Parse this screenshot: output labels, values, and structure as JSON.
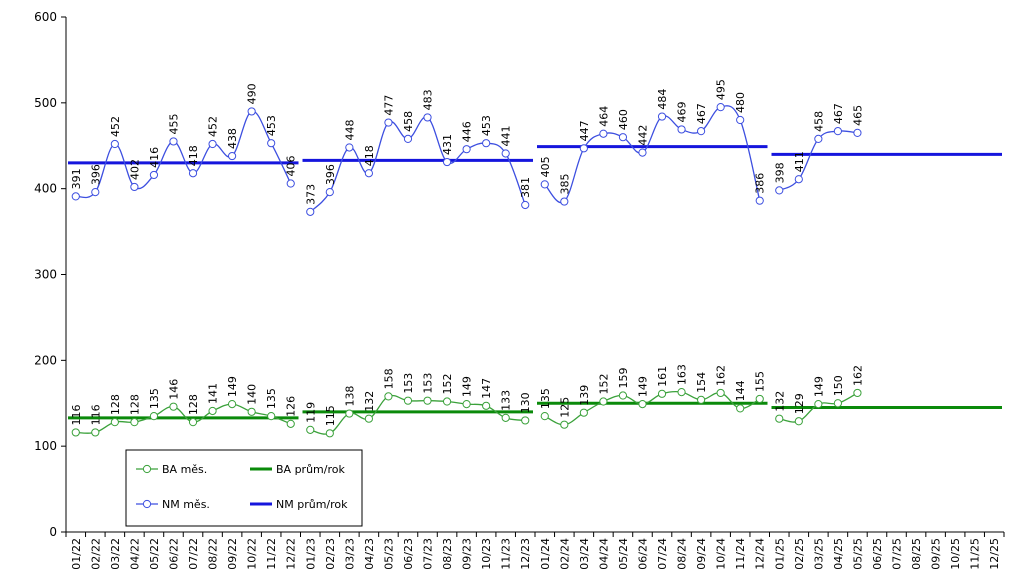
{
  "chart_data": {
    "type": "line",
    "title": "",
    "xlabel": "",
    "ylabel": "",
    "ylim": [
      0,
      600
    ],
    "yticks": [
      "0",
      "100",
      "200",
      "300",
      "400",
      "500",
      "600"
    ],
    "grid": false,
    "legend_position": "bottom-left",
    "categories": [
      "01/22",
      "02/22",
      "03/22",
      "04/22",
      "05/22",
      "06/22",
      "07/22",
      "08/22",
      "09/22",
      "10/22",
      "11/22",
      "12/22",
      "01/23",
      "02/23",
      "03/23",
      "04/23",
      "05/23",
      "06/23",
      "07/23",
      "08/23",
      "09/23",
      "10/23",
      "11/23",
      "12/23",
      "01/24",
      "02/24",
      "03/24",
      "04/24",
      "05/24",
      "06/24",
      "07/24",
      "08/24",
      "09/24",
      "10/24",
      "11/24",
      "12/24",
      "01/25",
      "02/25",
      "03/25",
      "04/25",
      "05/25",
      "06/25",
      "07/25",
      "08/25",
      "09/25",
      "10/25",
      "11/25",
      "12/25"
    ],
    "series": [
      {
        "name": "BA měs.",
        "color": "#3aa13a",
        "segments": [
          [
            116,
            116,
            128,
            128,
            135,
            146,
            128,
            141,
            149,
            140,
            135,
            126
          ],
          [
            119,
            115,
            138,
            132,
            158,
            153,
            153,
            152,
            149,
            147,
            133,
            130
          ],
          [
            135,
            125,
            139,
            152,
            159,
            149,
            161,
            163,
            154,
            162,
            144,
            155
          ],
          [
            132,
            129,
            149,
            150,
            162
          ]
        ]
      },
      {
        "name": "NM měs.",
        "color": "#3d4fe0",
        "segments": [
          [
            391,
            396,
            452,
            402,
            416,
            455,
            418,
            452,
            438,
            490,
            453,
            406
          ],
          [
            373,
            396,
            448,
            418,
            477,
            458,
            483,
            431,
            446,
            453,
            441,
            381
          ],
          [
            405,
            385,
            447,
            464,
            460,
            442,
            484,
            469,
            467,
            495,
            480,
            386
          ],
          [
            398,
            411,
            458,
            467,
            465
          ]
        ]
      },
      {
        "name": "BA prům/rok",
        "color": "#0a8a0a",
        "averages": [
          {
            "from": "01/22",
            "to": "12/22",
            "value": 133
          },
          {
            "from": "01/23",
            "to": "12/23",
            "value": 140
          },
          {
            "from": "01/24",
            "to": "12/24",
            "value": 150
          },
          {
            "from": "01/25",
            "to": "12/25",
            "value": 145
          }
        ]
      },
      {
        "name": "NM prům/rok",
        "color": "#1515dd",
        "averages": [
          {
            "from": "01/22",
            "to": "12/22",
            "value": 430
          },
          {
            "from": "01/23",
            "to": "12/23",
            "value": 433
          },
          {
            "from": "01/24",
            "to": "12/24",
            "value": 449
          },
          {
            "from": "01/25",
            "to": "12/25",
            "value": 440
          }
        ]
      }
    ],
    "legend": [
      {
        "label": "BA měs.",
        "marker": "circle",
        "color": "#3aa13a"
      },
      {
        "label": "BA prům/rok",
        "marker": "line",
        "color": "#0a8a0a"
      },
      {
        "label": "NM měs.",
        "marker": "circle",
        "color": "#3d4fe0"
      },
      {
        "label": "NM prům/rok",
        "marker": "line",
        "color": "#1515dd"
      }
    ]
  }
}
